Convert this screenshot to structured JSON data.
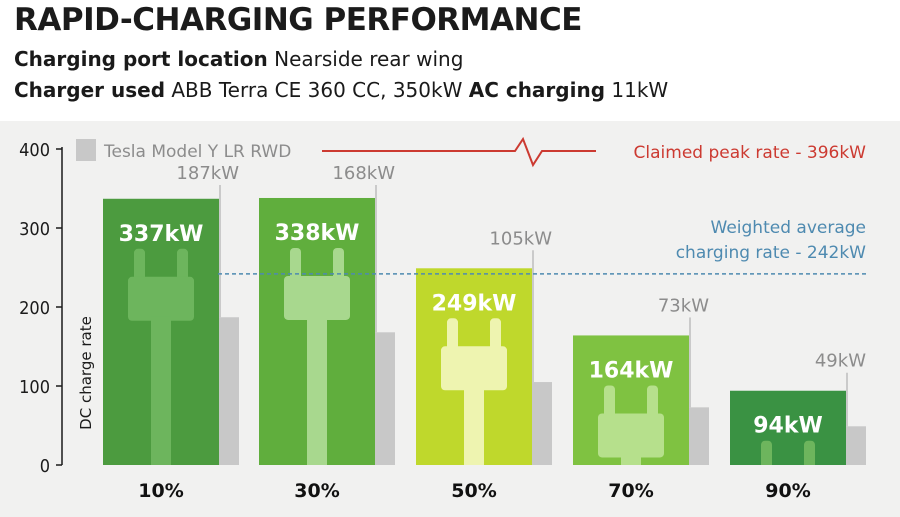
{
  "header": {
    "title": "RAPID-CHARGING PERFORMANCE",
    "port_label": "Charging port location",
    "port_value": "Nearside rear wing",
    "charger_label": "Charger used",
    "charger_value": "ABB Terra CE 360 CC, 350kW",
    "ac_label": "AC charging",
    "ac_value": "11kW"
  },
  "colors": {
    "bar_10": "#4c9b3f",
    "bar_30": "#60ae3d",
    "bar_50": "#bfd82c",
    "bar_70": "#7fc241",
    "bar_90": "#3a9243",
    "comparison": "#c8c8c8",
    "plug_10": "#6db55d",
    "plug_30": "#a8d88e",
    "plug_50": "#eef4b0",
    "plug_70": "#b6e08c",
    "plug_90": "#6db55d",
    "claimed": "#cc3a31",
    "average": "#4e8ab0"
  },
  "chart_data": {
    "type": "bar",
    "categories": [
      "10%",
      "30%",
      "50%",
      "70%",
      "90%"
    ],
    "series": [
      {
        "values": [
          337,
          338,
          249,
          164,
          94
        ],
        "labels": [
          "337kW",
          "338kW",
          "249kW",
          "164kW",
          "94kW"
        ]
      },
      {
        "name": "Tesla Model Y LR RWD",
        "values": [
          187,
          168,
          105,
          73,
          49
        ],
        "labels": [
          "187kW",
          "168kW",
          "105kW",
          "73kW",
          "49kW"
        ]
      }
    ],
    "ylabel": "DC charge rate",
    "ylim": [
      0,
      400
    ],
    "yticks": [
      0,
      100,
      200,
      300,
      400
    ],
    "claimed_peak": {
      "value": 396,
      "label": "Claimed peak rate - 396kW"
    },
    "weighted_average": {
      "value": 242,
      "label_line1": "Weighted average",
      "label_line2": "charging rate - 242kW"
    },
    "legend_position": "top-left"
  }
}
